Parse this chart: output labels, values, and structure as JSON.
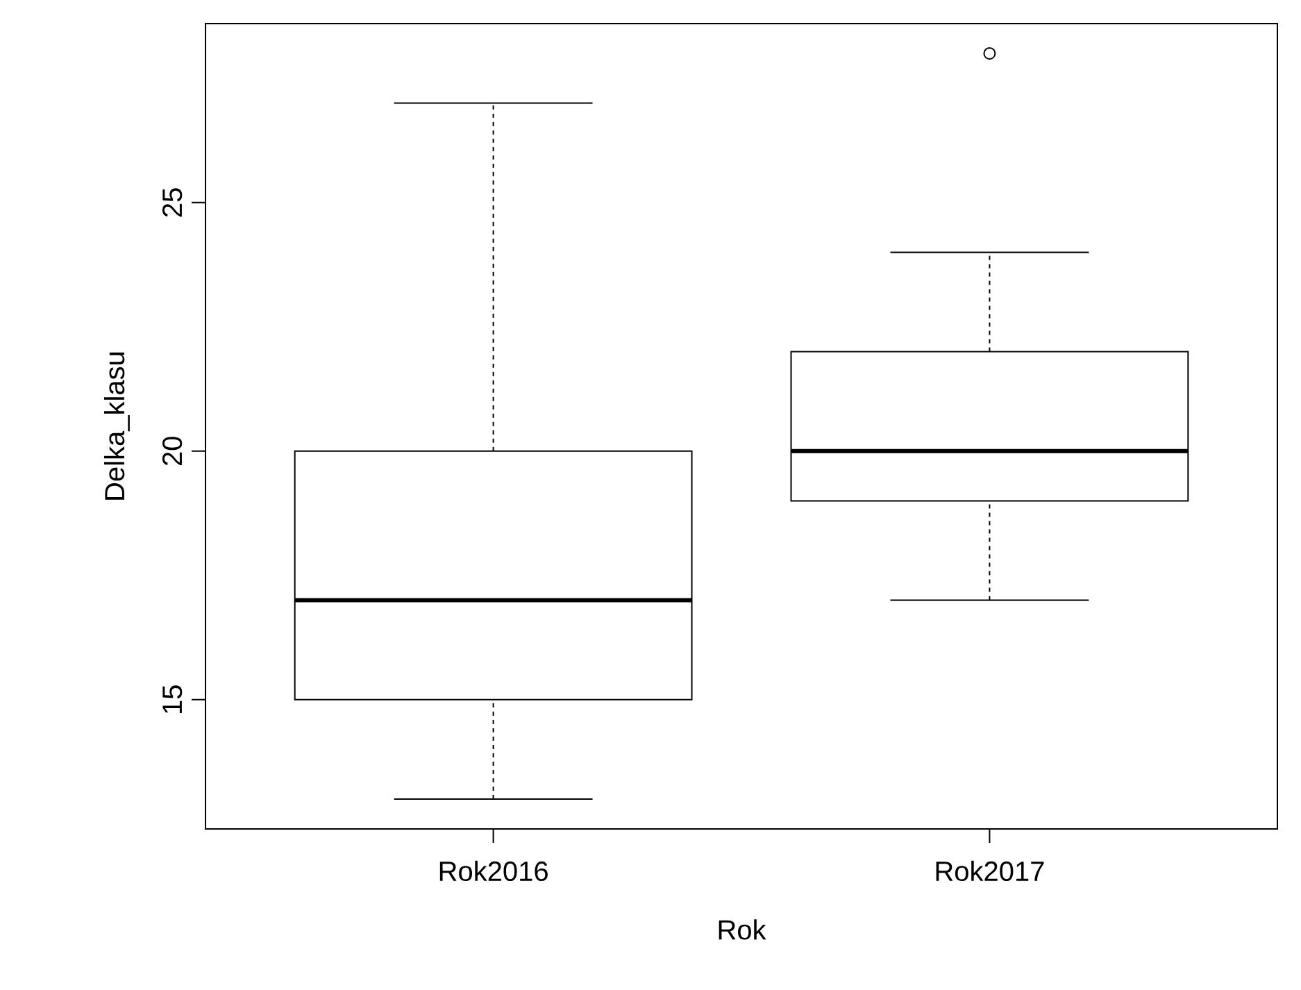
{
  "chart_data": {
    "type": "box",
    "xlabel": "Rok",
    "ylabel": "Delka_klasu",
    "categories": [
      "Rok2016",
      "Rok2017"
    ],
    "boxes": [
      {
        "low": 13,
        "q1": 15,
        "median": 17,
        "q3": 20,
        "high": 27
      },
      {
        "low": 17,
        "q1": 19,
        "median": 20,
        "q3": 22,
        "high": 24,
        "outliers": [
          28
        ]
      }
    ],
    "ylim": [
      12.4,
      28.6
    ],
    "yticks": [
      15,
      20,
      25
    ]
  }
}
